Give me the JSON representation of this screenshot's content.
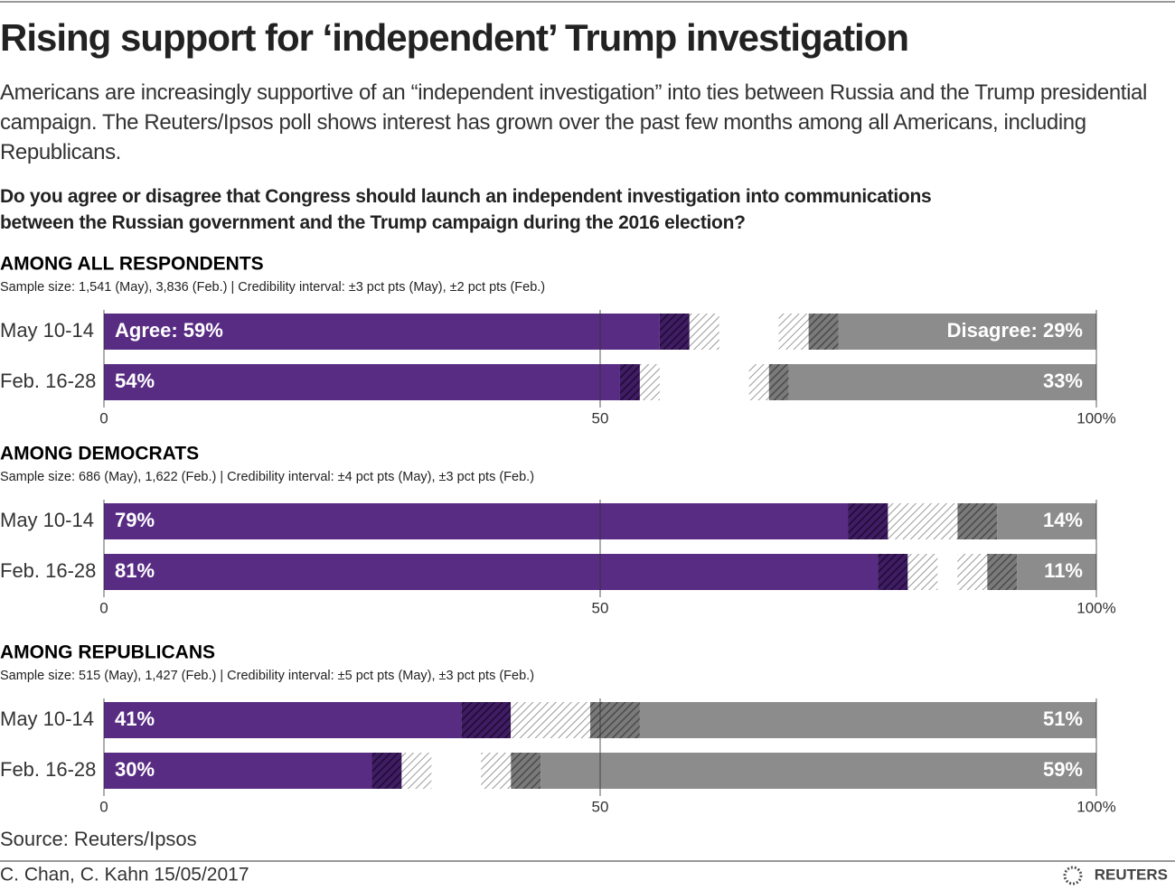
{
  "title": "Rising support for ‘independent’ Trump investigation",
  "subtitle": "Americans are increasingly supportive of an “independent investigation” into ties between Russia and the Trump presidential campaign. The Reuters/Ipsos poll shows interest has grown over the past few months among all Americans, including Republicans.",
  "question": "Do you agree or disagree that Congress should launch an independent investigation into communications between the Russian government and the Trump campaign during the 2016 election?",
  "source": "Source: Reuters/Ipsos",
  "credit": "C. Chan, C. Kahn  15/05/2017",
  "logo": "REUTERS",
  "chart_data": [
    {
      "type": "bar",
      "title": "AMONG ALL RESPONDENTS",
      "subtitle": "Sample size: 1,541 (May), 3,836 (Feb.) | Credibility interval: ±3 pct pts (May), ±2 pct pts (Feb.)",
      "categories": [
        "May 10-14",
        "Feb. 16-28"
      ],
      "series": [
        {
          "name": "Agree",
          "color": "#582c83",
          "values": [
            59,
            54
          ],
          "value_labels": [
            "Agree: 59%",
            "54%"
          ],
          "errors": [
            3,
            2
          ]
        },
        {
          "name": "Disagree",
          "color": "#8c8c8c",
          "values": [
            29,
            33
          ],
          "value_labels": [
            "Disagree: 29%",
            "33%"
          ],
          "errors": [
            3,
            2
          ]
        }
      ],
      "xlim": [
        0,
        100
      ],
      "xticks": [
        0,
        50,
        {
          "value": 100,
          "label": "100%"
        }
      ]
    },
    {
      "type": "bar",
      "title": "AMONG DEMOCRATS",
      "subtitle": "Sample size: 686 (May), 1,622 (Feb.) | Credibility interval: ±4 pct pts (May), ±3 pct pts (Feb.)",
      "categories": [
        "May 10-14",
        "Feb. 16-28"
      ],
      "series": [
        {
          "name": "Agree",
          "color": "#582c83",
          "values": [
            79,
            81
          ],
          "value_labels": [
            "79%",
            "81%"
          ],
          "errors": [
            4,
            3
          ]
        },
        {
          "name": "Disagree",
          "color": "#8c8c8c",
          "values": [
            14,
            11
          ],
          "value_labels": [
            "14%",
            "11%"
          ],
          "errors": [
            4,
            3
          ]
        }
      ],
      "xlim": [
        0,
        100
      ],
      "xticks": [
        0,
        50,
        {
          "value": 100,
          "label": "100%"
        }
      ]
    },
    {
      "type": "bar",
      "title": "AMONG REPUBLICANS",
      "subtitle": "Sample size: 515 (May), 1,427 (Feb.) | Credibility interval: ±5 pct pts (May), ±3 pct pts (Feb.)",
      "categories": [
        "May 10-14",
        "Feb. 16-28"
      ],
      "series": [
        {
          "name": "Agree",
          "color": "#582c83",
          "values": [
            41,
            30
          ],
          "value_labels": [
            "41%",
            "30%"
          ],
          "errors": [
            5,
            3
          ]
        },
        {
          "name": "Disagree",
          "color": "#8c8c8c",
          "values": [
            51,
            59
          ],
          "value_labels": [
            "51%",
            "59%"
          ],
          "errors": [
            5,
            3
          ]
        }
      ],
      "xlim": [
        0,
        100
      ],
      "xticks": [
        0,
        50,
        {
          "value": 100,
          "label": "100%"
        }
      ]
    }
  ]
}
